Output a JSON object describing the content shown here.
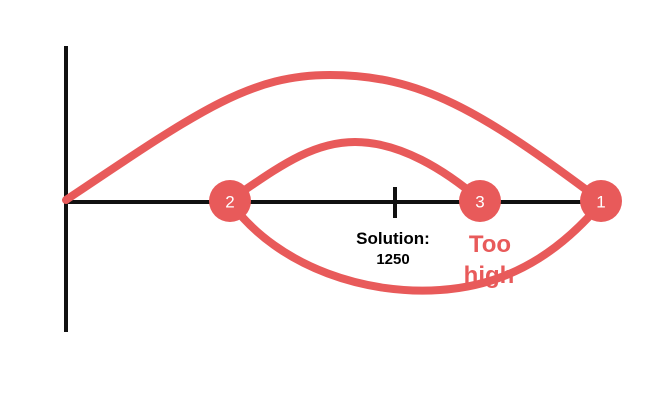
{
  "colors": {
    "accent": "#e85a5a",
    "axis": "#111111",
    "node_text": "#ffffff"
  },
  "nodes": [
    {
      "id": "1",
      "label": "1"
    },
    {
      "id": "2",
      "label": "2"
    },
    {
      "id": "3",
      "label": "3"
    }
  ],
  "solution": {
    "label": "Solution:",
    "value": "1250"
  },
  "note": {
    "line1": "Too",
    "line2": "high"
  }
}
